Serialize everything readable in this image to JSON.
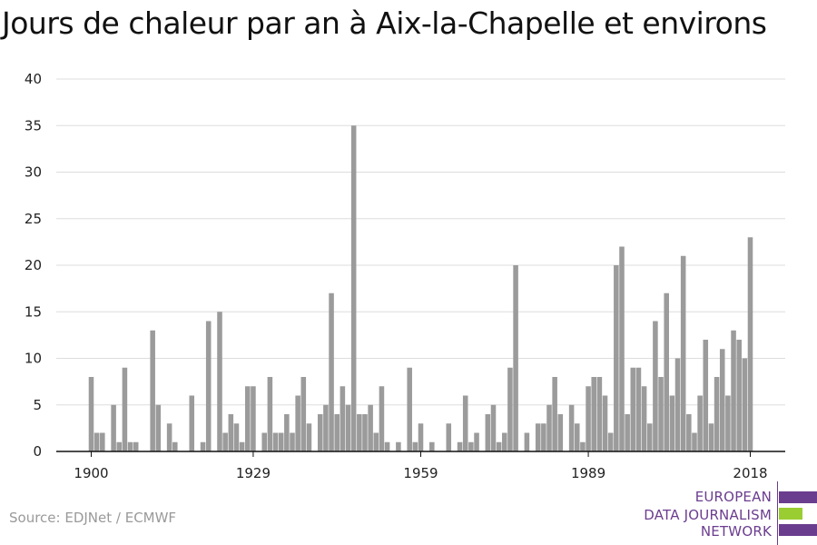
{
  "title": "Jours de chaleur par an à Aix-la-Chapelle et environs",
  "source": "Source: EDJNet / ECMWF",
  "logo": {
    "lines": [
      "EUROPEAN",
      "DATA JOURNALISM",
      "NETWORK"
    ],
    "colors": {
      "purple": "#6b3d8f",
      "green": "#9acd32"
    }
  },
  "colors": {
    "bar": "#9b9b9b",
    "grid": "#dddddd",
    "axis": "#111111"
  },
  "chart_data": {
    "type": "bar",
    "title": "Jours de chaleur par an à Aix-la-Chapelle et environs",
    "xlabel": "",
    "ylabel": "",
    "ylim": [
      0,
      40
    ],
    "yticks": [
      0,
      5,
      10,
      15,
      20,
      25,
      30,
      35,
      40
    ],
    "xticks": [
      "1900",
      "1929",
      "1959",
      "1989",
      "2018"
    ],
    "grid": true,
    "x_start": 1900,
    "x_end": 2018,
    "x": [
      1900,
      1901,
      1902,
      1903,
      1904,
      1905,
      1906,
      1907,
      1908,
      1909,
      1910,
      1911,
      1912,
      1913,
      1914,
      1915,
      1916,
      1917,
      1918,
      1919,
      1920,
      1921,
      1922,
      1923,
      1924,
      1925,
      1926,
      1927,
      1928,
      1929,
      1930,
      1931,
      1932,
      1933,
      1934,
      1935,
      1936,
      1937,
      1938,
      1939,
      1940,
      1941,
      1942,
      1943,
      1944,
      1945,
      1946,
      1947,
      1948,
      1949,
      1950,
      1951,
      1952,
      1953,
      1954,
      1955,
      1956,
      1957,
      1958,
      1959,
      1960,
      1961,
      1962,
      1963,
      1964,
      1965,
      1966,
      1967,
      1968,
      1969,
      1970,
      1971,
      1972,
      1973,
      1974,
      1975,
      1976,
      1977,
      1978,
      1979,
      1980,
      1981,
      1982,
      1983,
      1984,
      1985,
      1986,
      1987,
      1988,
      1989,
      1990,
      1991,
      1992,
      1993,
      1994,
      1995,
      1996,
      1997,
      1998,
      1999,
      2000,
      2001,
      2002,
      2003,
      2004,
      2005,
      2006,
      2007,
      2008,
      2009,
      2010,
      2011,
      2012,
      2013,
      2014,
      2015,
      2016,
      2017,
      2018
    ],
    "values": [
      8,
      2,
      2,
      0,
      5,
      1,
      9,
      1,
      1,
      0,
      0,
      13,
      5,
      0,
      3,
      1,
      0,
      0,
      6,
      0,
      1,
      14,
      0,
      15,
      2,
      4,
      3,
      1,
      7,
      7,
      0,
      2,
      8,
      2,
      2,
      4,
      2,
      6,
      8,
      3,
      0,
      4,
      5,
      17,
      4,
      7,
      5,
      35,
      4,
      4,
      5,
      2,
      7,
      1,
      0,
      1,
      0,
      9,
      1,
      3,
      0,
      1,
      0,
      0,
      3,
      0,
      1,
      6,
      1,
      2,
      0,
      4,
      5,
      1,
      2,
      9,
      20,
      0,
      2,
      0,
      3,
      3,
      5,
      8,
      4,
      0,
      5,
      3,
      1,
      7,
      8,
      8,
      6,
      2,
      20,
      22,
      4,
      9,
      9,
      7,
      3,
      14,
      8,
      17,
      6,
      10,
      21,
      4,
      2,
      6,
      12,
      3,
      8,
      11,
      6,
      13,
      12,
      10,
      23
    ]
  }
}
